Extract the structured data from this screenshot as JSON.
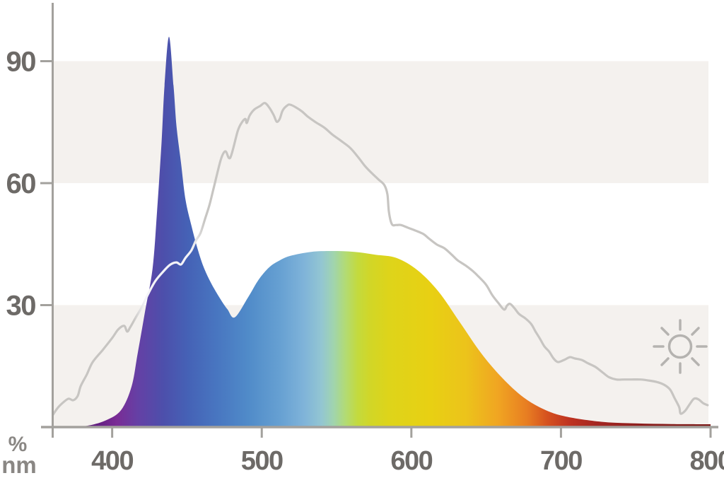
{
  "axis": {
    "y_unit": "%",
    "x_unit": "nm",
    "y_ticks": [
      90,
      60,
      30
    ],
    "x_ticks": [
      400,
      500,
      600,
      700,
      800
    ]
  },
  "colors": {
    "background": "#ffffff",
    "shaded_band": "#f4f1ee",
    "axis_line": "#a3a19d",
    "tick_label": "#6d6a67",
    "unit_label": "#8a8784",
    "daylight_line": "#c7c5c2",
    "daylight_over_fill": "#f3f3f7",
    "sun_icon": "#b5b3b0"
  },
  "icons": {
    "sun": "sun-icon"
  },
  "chart_data": {
    "type": "area",
    "title": "",
    "xlabel": "nm",
    "ylabel": "%",
    "x_range": [
      360,
      800
    ],
    "y_range": [
      0,
      100
    ],
    "x_ticks": [
      400,
      500,
      600,
      700,
      800
    ],
    "y_gridlines": [
      30,
      60,
      90
    ],
    "shaded_bands_pct": [
      [
        0,
        30
      ],
      [
        60,
        90
      ]
    ],
    "legend": "none",
    "series": [
      {
        "name": "led_spectrum",
        "render": "spectrum-gradient-area",
        "points": [
          [
            370,
            0
          ],
          [
            383,
            0.3
          ],
          [
            396,
            1.7
          ],
          [
            406,
            4.2
          ],
          [
            413,
            10
          ],
          [
            417,
            18
          ],
          [
            422,
            28.5
          ],
          [
            427,
            39
          ],
          [
            430,
            53
          ],
          [
            433,
            70
          ],
          [
            435,
            84
          ],
          [
            438,
            96
          ],
          [
            441,
            84
          ],
          [
            443,
            74
          ],
          [
            446,
            65
          ],
          [
            449,
            56
          ],
          [
            453,
            49.5
          ],
          [
            457,
            44
          ],
          [
            461,
            39.5
          ],
          [
            466,
            35.5
          ],
          [
            472,
            31.7
          ],
          [
            477,
            29
          ],
          [
            482,
            27
          ],
          [
            491,
            32
          ],
          [
            498,
            36.3
          ],
          [
            505,
            39.3
          ],
          [
            512,
            41
          ],
          [
            519,
            42.1
          ],
          [
            533,
            43.1
          ],
          [
            547,
            43.3
          ],
          [
            562,
            43.1
          ],
          [
            576,
            42.4
          ],
          [
            590,
            41.6
          ],
          [
            604,
            38.6
          ],
          [
            618,
            33.4
          ],
          [
            632,
            26
          ],
          [
            647,
            18
          ],
          [
            661,
            12
          ],
          [
            675,
            7.3
          ],
          [
            689,
            4.3
          ],
          [
            703,
            2.6
          ],
          [
            727,
            1.3
          ],
          [
            750,
            0.9
          ],
          [
            774,
            0.75
          ],
          [
            800,
            0.7
          ]
        ]
      },
      {
        "name": "daylight_reference",
        "render": "gray-line",
        "points": [
          [
            360.5,
            3.1
          ],
          [
            364,
            4.9
          ],
          [
            368,
            6.3
          ],
          [
            371,
            7.0
          ],
          [
            374,
            6.6
          ],
          [
            377,
            7.7
          ],
          [
            379,
            10.1
          ],
          [
            383,
            12.9
          ],
          [
            387,
            16.0
          ],
          [
            394,
            19.1
          ],
          [
            400,
            21.9
          ],
          [
            404,
            24.0
          ],
          [
            408,
            24.9
          ],
          [
            410,
            23.5
          ],
          [
            412,
            24.5
          ],
          [
            416,
            27.1
          ],
          [
            420,
            29.6
          ],
          [
            424,
            32.7
          ],
          [
            429,
            36.0
          ],
          [
            435,
            38.6
          ],
          [
            439,
            40.0
          ],
          [
            443,
            40.5
          ],
          [
            446,
            40.0
          ],
          [
            449,
            41.6
          ],
          [
            453,
            43.5
          ],
          [
            456,
            45.9
          ],
          [
            459,
            47.7
          ],
          [
            462,
            51.1
          ],
          [
            465,
            54.6
          ],
          [
            468,
            59.0
          ],
          [
            472,
            65.0
          ],
          [
            474,
            67.1
          ],
          [
            476,
            67.8
          ],
          [
            479,
            66.3
          ],
          [
            484,
            72.9
          ],
          [
            487,
            75.1
          ],
          [
            489,
            75.8
          ],
          [
            490,
            74.8
          ],
          [
            492,
            76.7
          ],
          [
            495,
            78.1
          ],
          [
            499,
            79.0
          ],
          [
            502,
            79.7
          ],
          [
            505,
            78.6
          ],
          [
            508,
            76.7
          ],
          [
            510,
            75.1
          ],
          [
            512,
            75.8
          ],
          [
            514,
            77.9
          ],
          [
            517,
            79.1
          ],
          [
            519,
            79.3
          ],
          [
            523,
            78.6
          ],
          [
            527,
            77.6
          ],
          [
            531,
            76.3
          ],
          [
            536,
            75.0
          ],
          [
            542,
            73.6
          ],
          [
            547,
            72.0
          ],
          [
            553,
            70.4
          ],
          [
            559,
            68.7
          ],
          [
            564,
            66.6
          ],
          [
            569,
            64.2
          ],
          [
            574,
            62.3
          ],
          [
            578,
            60.9
          ],
          [
            582,
            59.5
          ],
          [
            584,
            57.2
          ],
          [
            585,
            52.9
          ],
          [
            587,
            49.9
          ],
          [
            590,
            49.7
          ],
          [
            593,
            49.7
          ],
          [
            598,
            49.0
          ],
          [
            603,
            48.3
          ],
          [
            608,
            47.5
          ],
          [
            612,
            46.3
          ],
          [
            617,
            44.9
          ],
          [
            622,
            44.0
          ],
          [
            627,
            42.4
          ],
          [
            631,
            41.0
          ],
          [
            636,
            39.8
          ],
          [
            641,
            38.4
          ],
          [
            645,
            37.0
          ],
          [
            650,
            35.0
          ],
          [
            654,
            32.5
          ],
          [
            658,
            30.6
          ],
          [
            662,
            28.9
          ],
          [
            664,
            29.9
          ],
          [
            666,
            30.3
          ],
          [
            669,
            29.2
          ],
          [
            672,
            27.8
          ],
          [
            676,
            26.8
          ],
          [
            680,
            25.4
          ],
          [
            683,
            23.5
          ],
          [
            686,
            21.7
          ],
          [
            689,
            19.8
          ],
          [
            692,
            18.6
          ],
          [
            695,
            16.9
          ],
          [
            698,
            16.0
          ],
          [
            702,
            16.5
          ],
          [
            706,
            17.2
          ],
          [
            709,
            16.9
          ],
          [
            714,
            16.5
          ],
          [
            718,
            15.7
          ],
          [
            723,
            14.8
          ],
          [
            728,
            13.4
          ],
          [
            732,
            12.3
          ],
          [
            737,
            11.7
          ],
          [
            742,
            11.7
          ],
          [
            747,
            11.7
          ],
          [
            753,
            11.7
          ],
          [
            758,
            11.5
          ],
          [
            764,
            11.1
          ],
          [
            769,
            10.4
          ],
          [
            773,
            9.2
          ],
          [
            776,
            7.1
          ],
          [
            779,
            4.9
          ],
          [
            780,
            3.3
          ],
          [
            783,
            4.0
          ],
          [
            786,
            5.6
          ],
          [
            789,
            7.0
          ],
          [
            792,
            6.8
          ],
          [
            795,
            5.9
          ],
          [
            798,
            5.4
          ]
        ]
      }
    ],
    "spectrum_gradient": [
      {
        "nm": 370,
        "color": "#3F0E49"
      },
      {
        "nm": 387,
        "color": "#5F1C7E"
      },
      {
        "nm": 403,
        "color": "#7A2C95"
      },
      {
        "nm": 417,
        "color": "#6540A5"
      },
      {
        "nm": 434,
        "color": "#4D4FAB"
      },
      {
        "nm": 451,
        "color": "#4562B6"
      },
      {
        "nm": 469,
        "color": "#4875C0"
      },
      {
        "nm": 491,
        "color": "#508BC9"
      },
      {
        "nm": 512,
        "color": "#66A0D2"
      },
      {
        "nm": 528,
        "color": "#7FB3D9"
      },
      {
        "nm": 540,
        "color": "#93C6D2"
      },
      {
        "nm": 548,
        "color": "#A0D4AE"
      },
      {
        "nm": 556,
        "color": "#B2DB74"
      },
      {
        "nm": 564,
        "color": "#C3DA3E"
      },
      {
        "nm": 573,
        "color": "#D2D626"
      },
      {
        "nm": 585,
        "color": "#DED41A"
      },
      {
        "nm": 613,
        "color": "#E8D013"
      },
      {
        "nm": 637,
        "color": "#ECC31B"
      },
      {
        "nm": 658,
        "color": "#F0A522"
      },
      {
        "nm": 677,
        "color": "#E87E22"
      },
      {
        "nm": 691,
        "color": "#D5511F"
      },
      {
        "nm": 706,
        "color": "#BE3220"
      },
      {
        "nm": 724,
        "color": "#A42622"
      },
      {
        "nm": 755,
        "color": "#8C1F1D"
      },
      {
        "nm": 802,
        "color": "#7C1A18"
      }
    ],
    "daylight_highlight": {
      "from_nm": 418,
      "to_nm": 457,
      "color": "#F3F3F7"
    }
  }
}
